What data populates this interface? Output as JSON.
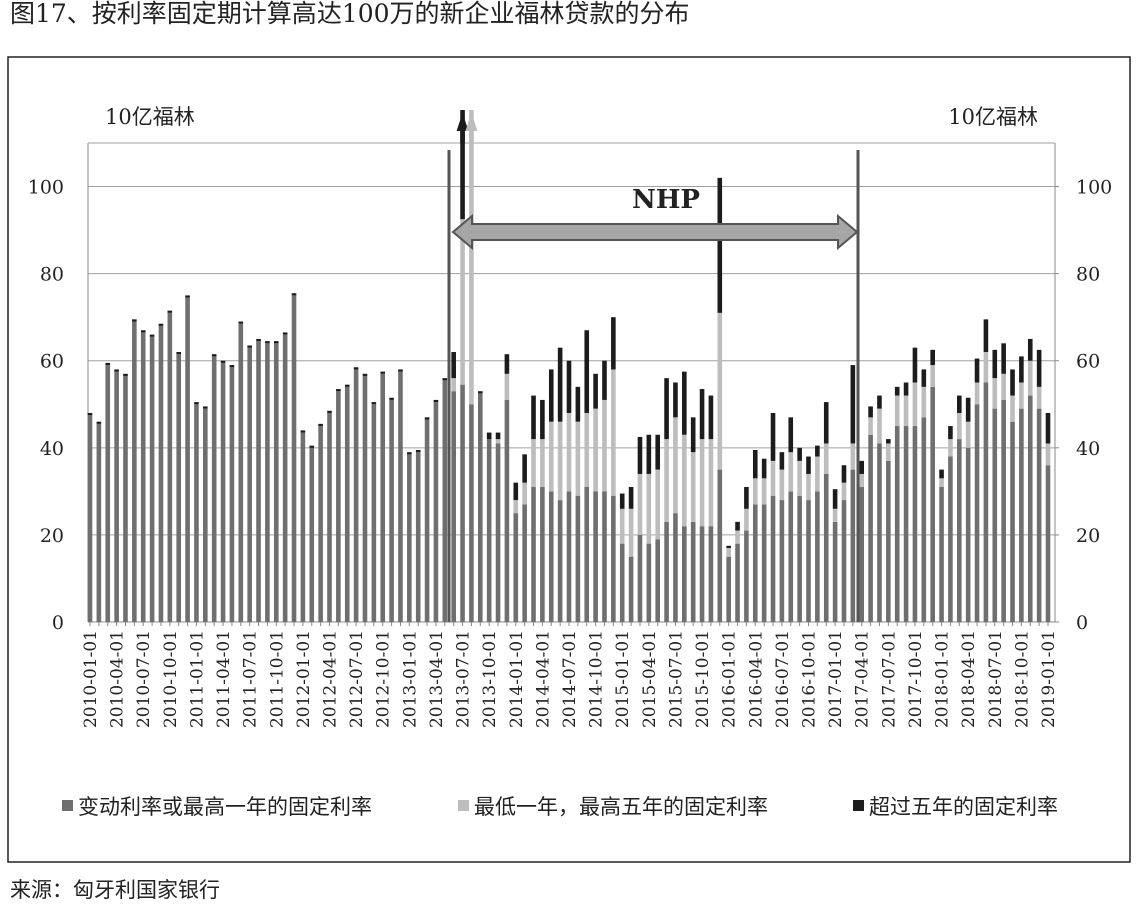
{
  "chart_data": {
    "type": "stacked_bar",
    "title": "图17、按利率固定期计算高达100万的新企业福林贷款的分布",
    "y_label": "10亿福林",
    "y2_label": "10亿福林",
    "annotation": "NHP",
    "source": "来源：匈牙利国家银行",
    "categories": [
      "2010-01-01",
      null,
      null,
      "2010-04-01",
      null,
      null,
      "2010-07-01",
      null,
      null,
      "2010-10-01",
      null,
      null,
      "2011-01-01",
      null,
      null,
      "2011-04-01",
      null,
      null,
      "2011-07-01",
      null,
      null,
      "2011-10-01",
      null,
      null,
      "2012-01-01",
      null,
      null,
      "2012-04-01",
      null,
      null,
      "2012-07-01",
      null,
      null,
      "2012-10-01",
      null,
      null,
      "2013-01-01",
      null,
      null,
      "2013-04-01",
      null,
      null,
      "2013-07-01",
      null,
      null,
      "2013-10-01",
      null,
      null,
      "2014-01-01",
      null,
      null,
      "2014-04-01",
      null,
      null,
      "2014-07-01",
      null,
      null,
      "2014-10-01",
      null,
      null,
      "2015-01-01",
      null,
      null,
      "2015-04-01",
      null,
      null,
      "2015-07-01",
      null,
      null,
      "2015-10-01",
      null,
      null,
      "2016-01-01",
      null,
      null,
      "2016-04-01",
      null,
      null,
      "2016-07-01",
      null,
      null,
      "2016-10-01",
      null,
      null,
      "2017-01-01",
      null,
      null,
      "2017-04-01",
      null,
      null,
      "2017-07-01",
      null,
      null,
      "2017-10-01",
      null,
      null,
      "2018-01-01",
      null,
      null,
      "2018-04-01",
      null,
      null,
      "2018-07-01",
      null,
      null,
      "2018-10-01",
      null,
      null,
      "2019-01-01"
    ],
    "series": [
      {
        "name": "变动利率或最高一年的固定利率",
        "color": "#6f6f6f",
        "values": [
          47.5,
          45.5,
          59,
          57.5,
          56.5,
          69,
          66.5,
          65.5,
          68,
          71,
          61.5,
          74.5,
          50,
          49,
          61,
          59.5,
          58.5,
          68.5,
          63,
          64.5,
          64,
          64,
          66,
          75,
          43.5,
          40,
          45,
          48,
          53,
          54,
          58,
          56.5,
          50,
          57,
          51,
          57.5,
          38.5,
          39,
          46.5,
          50.5,
          55.5,
          53,
          54.5,
          50,
          52.5,
          42,
          41,
          51,
          25,
          27,
          31,
          31,
          30,
          28,
          30,
          29,
          31,
          30,
          30,
          29,
          18,
          15,
          20,
          18,
          19,
          23,
          25,
          22,
          23,
          22,
          22,
          35,
          15,
          18,
          21,
          27,
          27,
          29,
          28,
          30,
          29,
          28,
          30,
          34,
          23,
          28,
          35,
          31,
          43,
          41,
          37,
          45,
          45,
          45,
          47,
          54,
          31,
          38,
          42,
          40,
          50,
          55,
          49,
          51,
          46,
          49,
          52,
          49,
          36
        ]
      },
      {
        "name": "最低一年，最高五年的固定利率",
        "color": "#bdbdbd",
        "values": [
          0,
          0,
          0,
          0,
          0,
          0,
          0,
          0,
          0,
          0,
          0,
          0,
          0,
          0,
          0,
          0,
          0,
          0,
          0,
          0,
          0,
          0,
          0,
          0,
          0,
          0,
          0,
          0,
          0,
          0,
          0,
          0,
          0,
          0,
          0,
          0,
          0,
          0,
          0,
          0,
          0,
          3,
          38,
          70,
          0,
          0,
          1,
          6,
          3,
          5,
          11,
          11,
          16,
          18,
          18,
          17,
          17,
          19,
          21,
          29,
          8,
          11,
          14,
          16,
          16,
          19,
          22,
          21,
          16,
          20,
          20,
          36,
          2,
          3,
          5,
          6,
          6,
          8,
          7,
          9,
          8,
          6,
          8,
          7,
          3,
          4,
          6,
          3,
          4,
          8,
          4,
          7,
          7,
          10,
          7,
          5,
          2,
          4,
          6,
          6,
          5,
          7,
          7,
          6,
          6,
          6,
          8,
          5,
          5
        ]
      },
      {
        "name": "超过五年的固定利率",
        "color": "#1c1c1c",
        "values": [
          0.5,
          0.5,
          0.5,
          0.5,
          0.5,
          0.5,
          0.5,
          0.5,
          0.5,
          0.5,
          0.5,
          0.5,
          0.5,
          0.5,
          0.5,
          0.5,
          0.5,
          0.5,
          0.5,
          0.5,
          0.5,
          0.5,
          0.5,
          0.5,
          0.5,
          0.5,
          0.5,
          0.5,
          0.5,
          0.5,
          0.5,
          0.5,
          0.5,
          0.5,
          0.5,
          0.5,
          0.5,
          0.5,
          0.5,
          0.5,
          0.5,
          6,
          30,
          0,
          0.5,
          1.5,
          1.5,
          4.5,
          4,
          6.5,
          10,
          9,
          12,
          17,
          12,
          8,
          19,
          8,
          9,
          12,
          3.5,
          5,
          8.5,
          9,
          8,
          14,
          8,
          14.5,
          8,
          11.5,
          10,
          31,
          0.5,
          2,
          5,
          6.5,
          4.5,
          11,
          4,
          8,
          3,
          4,
          2.5,
          9.5,
          4.5,
          4,
          18,
          3,
          2.5,
          3,
          1,
          2,
          3,
          8,
          4,
          3.5,
          2,
          3,
          4,
          5.5,
          5.5,
          7.5,
          6.5,
          7,
          6,
          6,
          5,
          8.5,
          7
        ]
      }
    ],
    "ylim": [
      0,
      110
    ],
    "yticks": [
      0,
      20,
      40,
      60,
      80,
      100
    ],
    "y2lim": [
      0,
      110
    ],
    "y2ticks": [
      0,
      20,
      40,
      60,
      80,
      100
    ],
    "grid": true,
    "legend": "bottom"
  }
}
